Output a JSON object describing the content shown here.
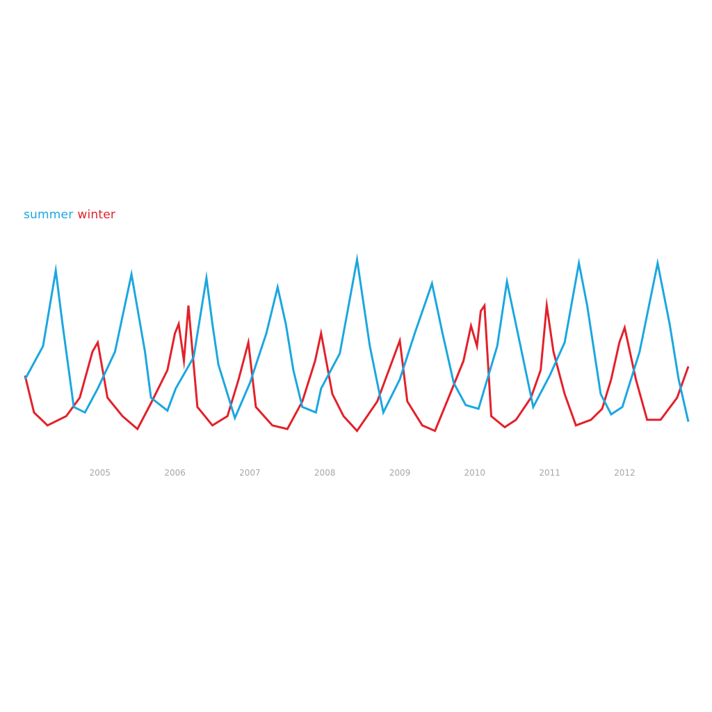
{
  "chart_data": {
    "type": "line",
    "title": "",
    "xlabel": "",
    "ylabel": "",
    "x_ticks": [
      "2005",
      "2006",
      "2007",
      "2008",
      "2009",
      "2010",
      "2011",
      "2012"
    ],
    "xlim": [
      2004.0,
      2012.85
    ],
    "ylim": [
      0,
      100
    ],
    "grid": false,
    "legend_position": "top-left",
    "series": [
      {
        "name": "summer",
        "color": "#1aa7e0",
        "points": [
          [
            2004.0,
            30
          ],
          [
            2004.24,
            48
          ],
          [
            2004.41,
            89
          ],
          [
            2004.5,
            60
          ],
          [
            2004.65,
            15
          ],
          [
            2004.8,
            12
          ],
          [
            2004.97,
            25
          ],
          [
            2005.2,
            45
          ],
          [
            2005.42,
            87
          ],
          [
            2005.6,
            45
          ],
          [
            2005.68,
            20
          ],
          [
            2005.9,
            13
          ],
          [
            2006.01,
            25
          ],
          [
            2006.25,
            42
          ],
          [
            2006.42,
            85
          ],
          [
            2006.5,
            60
          ],
          [
            2006.58,
            38
          ],
          [
            2006.8,
            9
          ],
          [
            2007.0,
            28
          ],
          [
            2007.22,
            55
          ],
          [
            2007.37,
            80
          ],
          [
            2007.48,
            60
          ],
          [
            2007.58,
            35
          ],
          [
            2007.7,
            15
          ],
          [
            2007.88,
            12
          ],
          [
            2007.95,
            25
          ],
          [
            2008.2,
            44
          ],
          [
            2008.43,
            95
          ],
          [
            2008.6,
            48
          ],
          [
            2008.78,
            12
          ],
          [
            2009.0,
            30
          ],
          [
            2009.2,
            55
          ],
          [
            2009.43,
            82
          ],
          [
            2009.57,
            55
          ],
          [
            2009.72,
            28
          ],
          [
            2009.88,
            16
          ],
          [
            2010.05,
            14
          ],
          [
            2010.3,
            48
          ],
          [
            2010.43,
            83
          ],
          [
            2010.6,
            50
          ],
          [
            2010.78,
            15
          ],
          [
            2011.0,
            32
          ],
          [
            2011.2,
            50
          ],
          [
            2011.39,
            93
          ],
          [
            2011.5,
            70
          ],
          [
            2011.68,
            22
          ],
          [
            2011.82,
            11
          ],
          [
            2011.97,
            15
          ],
          [
            2012.2,
            45
          ],
          [
            2012.44,
            93
          ],
          [
            2012.6,
            60
          ],
          [
            2012.72,
            30
          ],
          [
            2012.85,
            7
          ]
        ]
      },
      {
        "name": "winter",
        "color": "#e3202a",
        "points": [
          [
            2004.0,
            32
          ],
          [
            2004.12,
            12
          ],
          [
            2004.3,
            5
          ],
          [
            2004.55,
            10
          ],
          [
            2004.73,
            20
          ],
          [
            2004.9,
            45
          ],
          [
            2004.97,
            50
          ],
          [
            2005.1,
            20
          ],
          [
            2005.3,
            10
          ],
          [
            2005.5,
            3
          ],
          [
            2005.68,
            17
          ],
          [
            2005.9,
            35
          ],
          [
            2006.0,
            55
          ],
          [
            2006.05,
            60
          ],
          [
            2006.12,
            40
          ],
          [
            2006.18,
            70
          ],
          [
            2006.3,
            15
          ],
          [
            2006.5,
            5
          ],
          [
            2006.7,
            10
          ],
          [
            2006.85,
            30
          ],
          [
            2006.98,
            50
          ],
          [
            2007.08,
            15
          ],
          [
            2007.3,
            5
          ],
          [
            2007.5,
            3
          ],
          [
            2007.7,
            18
          ],
          [
            2007.87,
            40
          ],
          [
            2007.95,
            55
          ],
          [
            2008.1,
            22
          ],
          [
            2008.25,
            10
          ],
          [
            2008.43,
            2
          ],
          [
            2008.7,
            18
          ],
          [
            2008.9,
            40
          ],
          [
            2009.0,
            51
          ],
          [
            2009.1,
            18
          ],
          [
            2009.3,
            5
          ],
          [
            2009.47,
            2
          ],
          [
            2009.65,
            20
          ],
          [
            2009.85,
            40
          ],
          [
            2009.95,
            59
          ],
          [
            2010.03,
            48
          ],
          [
            2010.08,
            67
          ],
          [
            2010.13,
            70
          ],
          [
            2010.22,
            10
          ],
          [
            2010.4,
            4
          ],
          [
            2010.55,
            8
          ],
          [
            2010.75,
            20
          ],
          [
            2010.88,
            35
          ],
          [
            2010.96,
            70
          ],
          [
            2011.05,
            45
          ],
          [
            2011.2,
            22
          ],
          [
            2011.35,
            5
          ],
          [
            2011.55,
            8
          ],
          [
            2011.7,
            14
          ],
          [
            2011.82,
            30
          ],
          [
            2011.93,
            50
          ],
          [
            2012.0,
            58
          ],
          [
            2012.15,
            30
          ],
          [
            2012.3,
            8
          ],
          [
            2012.48,
            8
          ],
          [
            2012.7,
            20
          ],
          [
            2012.85,
            37
          ]
        ]
      }
    ]
  }
}
